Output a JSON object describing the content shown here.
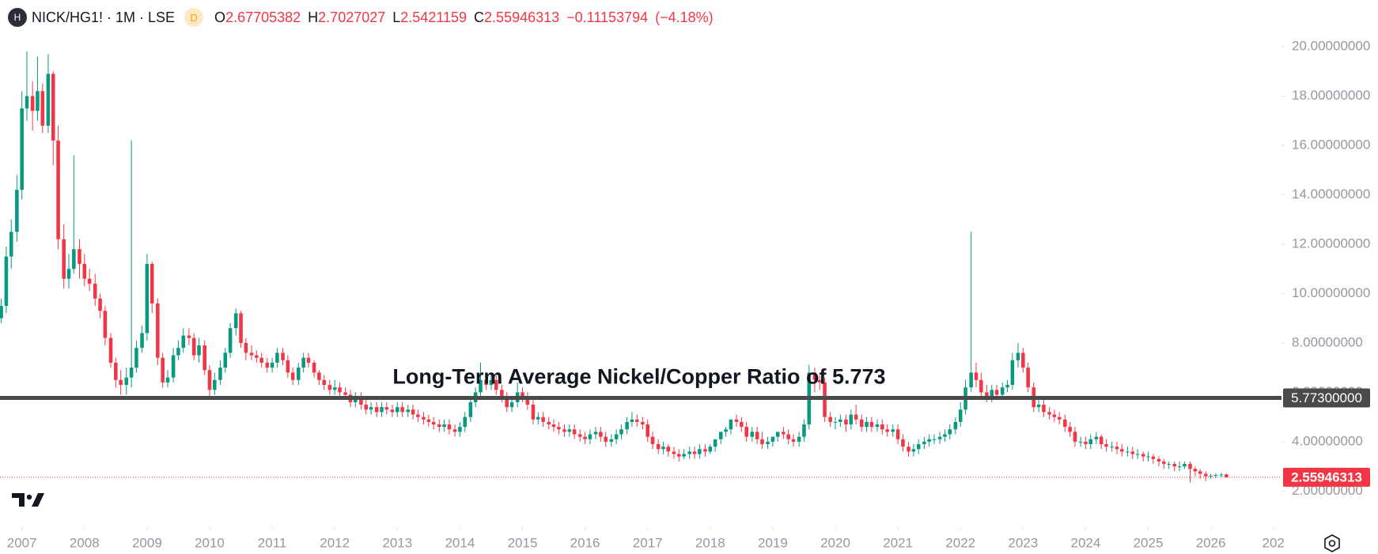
{
  "legend": {
    "icon": "H",
    "symbol": "NICK/HG1! · 1M · LSE",
    "badge": "D",
    "open_label": "O",
    "high_label": "H",
    "low_label": "L",
    "close_label": "C",
    "change": "−0.11153794",
    "change_percent": "(−4.18%)"
  },
  "chart_data": {
    "type": "candlestick",
    "up_color": "#089981",
    "down_color": "#f23645",
    "x": [
      2006.67,
      2006.75,
      2006.83,
      2006.92,
      2007.0,
      2007.08,
      2007.17,
      2007.25,
      2007.33,
      2007.42,
      2007.5,
      2007.58,
      2007.67,
      2007.75,
      2007.83,
      2007.92,
      2008.0,
      2008.08,
      2008.17,
      2008.25,
      2008.33,
      2008.42,
      2008.5,
      2008.58,
      2008.67,
      2008.75,
      2008.83,
      2008.92,
      2009.0,
      2009.08,
      2009.17,
      2009.25,
      2009.33,
      2009.42,
      2009.5,
      2009.58,
      2009.67,
      2009.75,
      2009.83,
      2009.92,
      2010.0,
      2010.08,
      2010.17,
      2010.25,
      2010.33,
      2010.42,
      2010.5,
      2010.58,
      2010.67,
      2010.75,
      2010.83,
      2010.92,
      2011.0,
      2011.08,
      2011.17,
      2011.25,
      2011.33,
      2011.42,
      2011.5,
      2011.58,
      2011.67,
      2011.75,
      2011.83,
      2011.92,
      2012.0,
      2012.08,
      2012.17,
      2012.25,
      2012.33,
      2012.42,
      2012.5,
      2012.58,
      2012.67,
      2012.75,
      2012.83,
      2012.92,
      2013.0,
      2013.08,
      2013.17,
      2013.25,
      2013.33,
      2013.42,
      2013.5,
      2013.58,
      2013.67,
      2013.75,
      2013.83,
      2013.92,
      2014.0,
      2014.08,
      2014.17,
      2014.25,
      2014.33,
      2014.42,
      2014.5,
      2014.58,
      2014.67,
      2014.75,
      2014.83,
      2014.92,
      2015.0,
      2015.08,
      2015.17,
      2015.25,
      2015.33,
      2015.42,
      2015.5,
      2015.58,
      2015.67,
      2015.75,
      2015.83,
      2015.92,
      2016.0,
      2016.08,
      2016.17,
      2016.25,
      2016.33,
      2016.42,
      2016.5,
      2016.58,
      2016.67,
      2016.75,
      2016.83,
      2016.92,
      2017.0,
      2017.08,
      2017.17,
      2017.25,
      2017.33,
      2017.42,
      2017.5,
      2017.58,
      2017.67,
      2017.75,
      2017.83,
      2017.92,
      2018.0,
      2018.08,
      2018.17,
      2018.25,
      2018.33,
      2018.42,
      2018.5,
      2018.58,
      2018.67,
      2018.75,
      2018.83,
      2018.92,
      2019.0,
      2019.08,
      2019.17,
      2019.25,
      2019.33,
      2019.42,
      2019.5,
      2019.58,
      2019.67,
      2019.75,
      2019.83,
      2019.92,
      2020.0,
      2020.08,
      2020.17,
      2020.25,
      2020.33,
      2020.42,
      2020.5,
      2020.58,
      2020.67,
      2020.75,
      2020.83,
      2020.92,
      2021.0,
      2021.08,
      2021.17,
      2021.25,
      2021.33,
      2021.42,
      2021.5,
      2021.58,
      2021.67,
      2021.75,
      2021.83,
      2021.92,
      2022.0,
      2022.08,
      2022.17,
      2022.25,
      2022.33,
      2022.42,
      2022.5,
      2022.58,
      2022.67,
      2022.75,
      2022.83,
      2022.92,
      2023.0,
      2023.08,
      2023.17,
      2023.25,
      2023.33,
      2023.42,
      2023.5,
      2023.58,
      2023.67,
      2023.75,
      2023.83,
      2023.92,
      2024.0,
      2024.08,
      2024.17,
      2024.25,
      2024.33,
      2024.42,
      2024.5,
      2024.58,
      2024.67,
      2024.75,
      2024.83,
      2024.92,
      2025.0,
      2025.08,
      2025.17,
      2025.25,
      2025.33,
      2025.42,
      2025.5,
      2025.58,
      2025.67,
      2025.75,
      2025.83,
      2025.92,
      2026.0,
      2026.08,
      2026.17,
      2026.25
    ],
    "open": [
      9.0,
      9.5,
      11.5,
      12.5,
      14.2,
      17.5,
      18.0,
      17.4,
      18.2,
      16.8,
      18.9,
      16.2,
      12.2,
      10.6,
      11.0,
      11.8,
      11.2,
      10.6,
      10.4,
      9.8,
      9.3,
      8.2,
      7.2,
      6.5,
      6.3,
      6.6,
      7.0,
      7.8,
      8.4,
      11.2,
      9.6,
      7.4,
      6.4,
      6.6,
      7.5,
      7.8,
      8.3,
      8.2,
      7.5,
      7.9,
      6.9,
      6.1,
      6.5,
      7.0,
      7.6,
      8.6,
      9.2,
      8.0,
      7.6,
      7.5,
      7.4,
      7.2,
      7.0,
      7.2,
      7.6,
      7.3,
      6.8,
      6.5,
      7.0,
      7.4,
      7.2,
      6.8,
      6.5,
      6.3,
      6.1,
      6.2,
      6.0,
      5.9,
      5.6,
      5.8,
      5.5,
      5.3,
      5.4,
      5.2,
      5.4,
      5.3,
      5.2,
      5.4,
      5.2,
      5.3,
      5.1,
      5.0,
      4.9,
      4.8,
      4.7,
      4.6,
      4.7,
      4.5,
      4.4,
      4.6,
      5.0,
      5.6,
      6.0,
      6.5,
      6.3,
      6.5,
      6.1,
      5.8,
      5.4,
      5.6,
      6.0,
      5.8,
      5.5,
      4.9,
      5.0,
      4.8,
      4.7,
      4.6,
      4.5,
      4.4,
      4.5,
      4.3,
      4.2,
      4.1,
      4.3,
      4.4,
      4.2,
      4.0,
      4.1,
      4.3,
      4.5,
      4.8,
      4.9,
      4.8,
      4.7,
      4.2,
      3.9,
      3.7,
      3.8,
      3.6,
      3.5,
      3.4,
      3.5,
      3.6,
      3.5,
      3.7,
      3.6,
      3.8,
      4.1,
      4.4,
      4.5,
      4.9,
      4.8,
      4.6,
      4.2,
      4.4,
      4.1,
      3.9,
      4.0,
      4.2,
      4.4,
      4.3,
      4.1,
      4.0,
      4.2,
      4.7,
      6.8,
      6.5,
      6.4,
      5.0,
      4.8,
      4.8,
      4.9,
      4.7,
      5.1,
      4.9,
      4.6,
      4.8,
      4.6,
      4.7,
      4.5,
      4.4,
      4.5,
      4.1,
      3.8,
      3.6,
      3.7,
      3.9,
      4.0,
      4.1,
      4.1,
      4.2,
      4.3,
      4.5,
      4.8,
      5.3,
      6.2,
      6.8,
      6.5,
      6.0,
      5.8,
      6.1,
      5.9,
      6.2,
      6.3,
      7.3,
      7.6,
      7.0,
      6.2,
      5.4,
      5.5,
      5.2,
      5.1,
      5.0,
      4.9,
      4.6,
      4.4,
      4.0,
      4.0,
      3.9,
      4.1,
      4.2,
      3.9,
      3.8,
      3.8,
      3.7,
      3.6,
      3.6,
      3.5,
      3.5,
      3.4,
      3.4,
      3.3,
      3.2,
      3.1,
      3.1,
      3.0,
      3.0,
      3.1,
      2.9,
      2.8,
      2.7,
      2.6,
      2.62,
      2.65,
      2.67705382
    ],
    "high": [
      9.8,
      11.9,
      13.0,
      14.8,
      18.2,
      19.8,
      18.6,
      19.6,
      18.5,
      19.7,
      19.0,
      16.8,
      12.8,
      11.6,
      15.6,
      12.2,
      11.6,
      11.0,
      10.8,
      10.0,
      9.5,
      8.4,
      7.4,
      6.9,
      7.0,
      16.2,
      8.1,
      8.7,
      11.6,
      11.3,
      9.8,
      7.6,
      6.9,
      7.8,
      8.1,
      8.6,
      8.6,
      8.4,
      8.2,
      8.1,
      7.1,
      6.8,
      7.3,
      7.8,
      8.8,
      9.4,
      9.3,
      8.2,
      7.9,
      7.7,
      7.6,
      7.4,
      7.4,
      7.8,
      7.8,
      7.5,
      7.0,
      7.2,
      7.6,
      7.6,
      7.3,
      6.9,
      6.7,
      6.5,
      6.5,
      6.4,
      6.2,
      6.1,
      6.0,
      6.0,
      5.7,
      5.6,
      5.6,
      5.6,
      5.6,
      5.5,
      5.6,
      5.6,
      5.5,
      5.5,
      5.3,
      5.2,
      5.1,
      5.0,
      4.9,
      4.9,
      4.9,
      4.7,
      4.8,
      5.2,
      5.8,
      6.2,
      7.2,
      6.8,
      6.7,
      6.7,
      6.3,
      6.0,
      5.8,
      6.4,
      6.2,
      6.0,
      5.7,
      5.2,
      5.2,
      5.0,
      4.9,
      4.8,
      4.7,
      4.7,
      4.7,
      4.5,
      4.4,
      4.5,
      4.6,
      4.6,
      4.4,
      4.3,
      4.5,
      4.7,
      5.0,
      5.2,
      5.1,
      5.0,
      4.9,
      4.4,
      4.1,
      4.0,
      3.9,
      3.8,
      3.7,
      3.7,
      3.8,
      3.8,
      3.9,
      3.9,
      3.9,
      4.0,
      4.3,
      4.6,
      4.8,
      5.1,
      5.0,
      4.8,
      4.6,
      4.6,
      4.4,
      4.2,
      4.2,
      4.4,
      4.6,
      4.5,
      4.3,
      4.4,
      4.9,
      7.1,
      7.0,
      6.7,
      6.6,
      5.2,
      5.0,
      5.1,
      5.1,
      5.3,
      5.5,
      5.1,
      5.0,
      5.0,
      4.9,
      4.9,
      4.7,
      4.7,
      4.7,
      4.3,
      4.0,
      3.9,
      4.1,
      4.2,
      4.3,
      4.3,
      4.4,
      4.5,
      4.7,
      5.0,
      5.6,
      6.5,
      12.5,
      7.2,
      6.8,
      6.3,
      6.3,
      6.3,
      6.4,
      6.5,
      7.6,
      8.0,
      7.8,
      7.2,
      6.4,
      5.8,
      5.7,
      5.4,
      5.3,
      5.2,
      5.1,
      4.8,
      4.6,
      4.2,
      4.2,
      4.3,
      4.4,
      4.3,
      4.1,
      4.0,
      4.0,
      3.9,
      3.8,
      3.8,
      3.7,
      3.6,
      3.6,
      3.5,
      3.4,
      3.3,
      3.2,
      3.2,
      3.2,
      3.2,
      3.2,
      3.0,
      2.9,
      2.8,
      2.7,
      2.72,
      2.74,
      2.7027027
    ],
    "low": [
      8.8,
      9.2,
      11.0,
      12.1,
      13.8,
      17.0,
      16.6,
      17.0,
      16.5,
      16.5,
      15.2,
      11.8,
      10.2,
      10.2,
      10.8,
      10.6,
      10.3,
      10.1,
      9.5,
      9.0,
      7.9,
      7.0,
      6.2,
      5.9,
      5.9,
      6.2,
      6.8,
      7.6,
      8.1,
      9.2,
      7.1,
      6.2,
      6.2,
      6.4,
      7.3,
      7.6,
      7.9,
      7.3,
      7.2,
      6.7,
      5.8,
      5.9,
      6.3,
      6.8,
      7.4,
      8.3,
      7.8,
      7.3,
      7.3,
      7.2,
      7.0,
      6.8,
      6.8,
      7.0,
      7.1,
      6.6,
      6.3,
      6.3,
      6.8,
      7.0,
      6.6,
      6.3,
      6.1,
      5.9,
      5.9,
      5.8,
      5.7,
      5.4,
      5.4,
      5.3,
      5.1,
      5.1,
      5.0,
      5.0,
      5.1,
      5.0,
      5.0,
      5.0,
      5.0,
      4.9,
      4.8,
      4.7,
      4.6,
      4.5,
      4.4,
      4.4,
      4.3,
      4.2,
      4.2,
      4.4,
      4.8,
      5.4,
      5.8,
      6.1,
      6.1,
      5.9,
      5.6,
      5.2,
      5.2,
      5.4,
      5.6,
      5.3,
      4.7,
      4.7,
      4.6,
      4.5,
      4.4,
      4.3,
      4.2,
      4.2,
      4.1,
      4.0,
      3.9,
      3.9,
      4.1,
      4.0,
      3.8,
      3.8,
      3.9,
      4.1,
      4.3,
      4.6,
      4.6,
      4.5,
      4.0,
      3.7,
      3.5,
      3.5,
      3.4,
      3.3,
      3.2,
      3.3,
      3.3,
      3.3,
      3.3,
      3.4,
      3.5,
      3.6,
      3.9,
      4.2,
      4.3,
      4.6,
      4.4,
      4.0,
      4.0,
      3.9,
      3.7,
      3.7,
      3.8,
      4.0,
      4.1,
      3.9,
      3.8,
      3.8,
      4.0,
      4.5,
      6.0,
      6.1,
      4.8,
      4.6,
      4.5,
      4.6,
      4.4,
      4.5,
      4.7,
      4.4,
      4.4,
      4.4,
      4.4,
      4.3,
      4.2,
      4.2,
      3.9,
      3.6,
      3.4,
      3.4,
      3.5,
      3.7,
      3.8,
      3.9,
      3.9,
      4.0,
      4.1,
      4.3,
      4.6,
      5.1,
      6.0,
      6.2,
      5.8,
      5.6,
      5.6,
      5.7,
      5.7,
      6.0,
      6.1,
      7.0,
      6.8,
      6.0,
      5.2,
      5.2,
      5.0,
      4.9,
      4.8,
      4.7,
      4.4,
      4.2,
      3.8,
      3.8,
      3.7,
      3.7,
      3.9,
      3.7,
      3.6,
      3.6,
      3.5,
      3.4,
      3.4,
      3.3,
      3.3,
      3.2,
      3.2,
      3.1,
      3.0,
      2.9,
      2.9,
      2.8,
      2.8,
      2.9,
      2.35,
      2.6,
      2.5,
      2.4,
      2.5,
      2.52,
      2.55,
      2.5421159
    ],
    "close": [
      9.5,
      11.5,
      12.5,
      14.2,
      17.5,
      18.0,
      17.4,
      18.2,
      16.8,
      18.9,
      16.2,
      12.2,
      10.6,
      11.0,
      11.8,
      11.2,
      10.6,
      10.4,
      9.8,
      9.3,
      8.2,
      7.2,
      6.5,
      6.3,
      6.6,
      7.0,
      7.8,
      8.4,
      11.2,
      9.6,
      7.4,
      6.4,
      6.6,
      7.5,
      7.8,
      8.3,
      8.2,
      7.5,
      7.9,
      6.9,
      6.1,
      6.5,
      7.0,
      7.6,
      8.6,
      9.2,
      8.0,
      7.6,
      7.5,
      7.4,
      7.2,
      7.0,
      7.2,
      7.6,
      7.3,
      6.8,
      6.5,
      7.0,
      7.4,
      7.2,
      6.8,
      6.5,
      6.3,
      6.1,
      6.2,
      6.0,
      5.9,
      5.6,
      5.8,
      5.5,
      5.3,
      5.4,
      5.2,
      5.4,
      5.3,
      5.2,
      5.4,
      5.2,
      5.3,
      5.1,
      5.0,
      4.9,
      4.8,
      4.7,
      4.6,
      4.7,
      4.5,
      4.4,
      4.6,
      5.0,
      5.6,
      6.0,
      6.5,
      6.3,
      6.5,
      6.1,
      5.8,
      5.4,
      5.6,
      6.0,
      5.8,
      5.5,
      4.9,
      5.0,
      4.8,
      4.7,
      4.6,
      4.5,
      4.4,
      4.5,
      4.3,
      4.2,
      4.1,
      4.3,
      4.4,
      4.2,
      4.0,
      4.1,
      4.3,
      4.5,
      4.8,
      4.9,
      4.8,
      4.7,
      4.2,
      3.9,
      3.7,
      3.8,
      3.6,
      3.5,
      3.4,
      3.5,
      3.6,
      3.5,
      3.7,
      3.6,
      3.8,
      4.1,
      4.4,
      4.5,
      4.9,
      4.8,
      4.6,
      4.2,
      4.4,
      4.1,
      3.9,
      4.0,
      4.2,
      4.4,
      4.3,
      4.1,
      4.0,
      4.2,
      4.7,
      6.8,
      6.5,
      6.4,
      5.0,
      4.8,
      4.8,
      4.9,
      4.7,
      5.1,
      4.9,
      4.6,
      4.8,
      4.6,
      4.7,
      4.5,
      4.4,
      4.5,
      4.1,
      3.8,
      3.6,
      3.7,
      3.9,
      4.0,
      4.1,
      4.1,
      4.2,
      4.3,
      4.5,
      4.8,
      5.3,
      6.2,
      6.8,
      6.5,
      6.0,
      5.8,
      6.1,
      5.9,
      6.2,
      6.3,
      7.3,
      7.6,
      7.0,
      6.2,
      5.4,
      5.5,
      5.2,
      5.1,
      5.0,
      4.9,
      4.6,
      4.4,
      4.0,
      4.0,
      3.9,
      4.1,
      4.2,
      3.9,
      3.8,
      3.8,
      3.7,
      3.6,
      3.6,
      3.5,
      3.5,
      3.4,
      3.4,
      3.3,
      3.2,
      3.1,
      3.1,
      3.0,
      3.0,
      3.1,
      2.9,
      2.8,
      2.7,
      2.6,
      2.62,
      2.65,
      2.67,
      2.55946313
    ],
    "xlim": [
      2006.65,
      2027.13
    ],
    "xticks": [
      2007,
      2008,
      2009,
      2010,
      2011,
      2012,
      2013,
      2014,
      2015,
      2016,
      2017,
      2018,
      2019,
      2020,
      2021,
      2022,
      2023,
      2024,
      2025,
      2026,
      {
        "value": 2027,
        "label": "202"
      }
    ],
    "ylim": [
      0.54,
      21.89
    ],
    "yticks": [
      {
        "value": 2,
        "label": "2.00000000"
      },
      {
        "value": 4,
        "label": "4.00000000"
      },
      {
        "value": 6,
        "label": "6.00000000"
      },
      {
        "value": 8,
        "label": "8.00000000"
      },
      {
        "value": 10,
        "label": "10.00000000"
      },
      {
        "value": 12,
        "label": "12.00000000"
      },
      {
        "value": 14,
        "label": "14.00000000"
      },
      {
        "value": 16,
        "label": "16.00000000"
      },
      {
        "value": 18,
        "label": "18.00000000"
      },
      {
        "value": 20,
        "label": "20.00000000"
      }
    ],
    "reference_line": {
      "value": 5.773,
      "label": "5.77300000",
      "color": "#4a4a4a"
    },
    "annotation": "Long-Term Average Nickel/Copper Ratio of 5.773"
  }
}
